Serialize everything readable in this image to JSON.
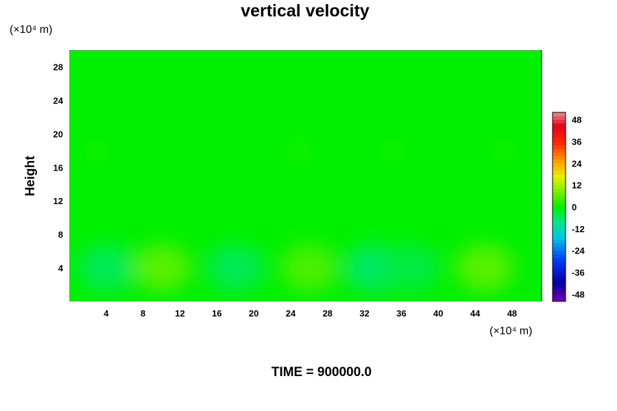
{
  "chart_data": {
    "type": "heatmap",
    "title": "vertical velocity",
    "ylabel": "Height",
    "y_unit": "(×10⁴ m)",
    "x_unit": "(×10⁴ m)",
    "x_ticks": [
      4,
      8,
      12,
      16,
      20,
      24,
      28,
      32,
      36,
      40,
      44,
      48
    ],
    "y_ticks": [
      4,
      8,
      12,
      16,
      20,
      24,
      28
    ],
    "xlim": [
      0,
      51.2
    ],
    "ylim": [
      0,
      30
    ],
    "colorbar": {
      "ticks": [
        48,
        36,
        24,
        12,
        0,
        -12,
        -24,
        -36,
        -48
      ],
      "range": [
        -52,
        52
      ]
    },
    "field_background": 0,
    "features": [
      {
        "x": 4,
        "y": 4,
        "value": -5
      },
      {
        "x": 10,
        "y": 4,
        "value": 6
      },
      {
        "x": 18,
        "y": 4,
        "value": -5
      },
      {
        "x": 26,
        "y": 4,
        "value": 5
      },
      {
        "x": 33,
        "y": 4,
        "value": -6
      },
      {
        "x": 37,
        "y": 4,
        "value": -4
      },
      {
        "x": 45,
        "y": 4,
        "value": 6
      },
      {
        "x": 3,
        "y": 18,
        "value": 3
      },
      {
        "x": 25,
        "y": 18,
        "value": 4
      },
      {
        "x": 35,
        "y": 18,
        "value": 3
      },
      {
        "x": 47,
        "y": 18,
        "value": 3
      }
    ],
    "footer": "TIME = 900000.0"
  }
}
